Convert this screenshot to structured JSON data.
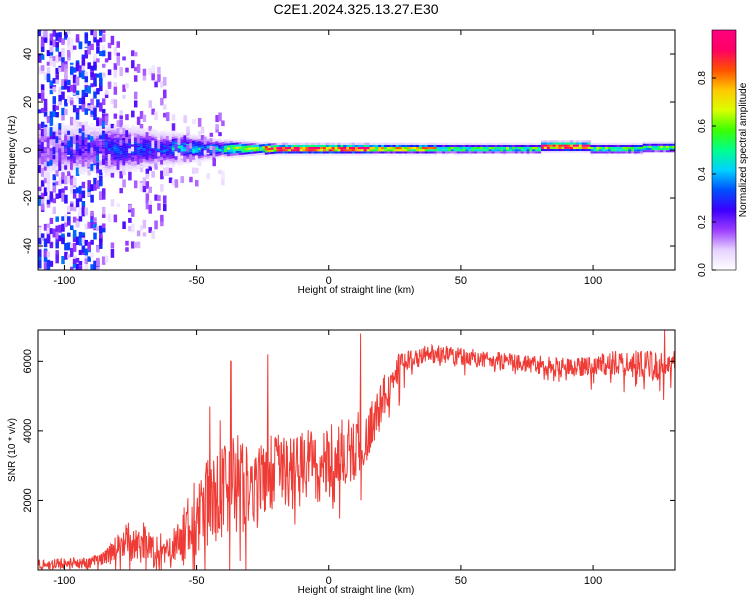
{
  "title": "C2E1.2024.325.13.27.E30",
  "charts": [
    {
      "type": "heatmap",
      "xlabel": "Height of straight line (km)",
      "ylabel": "Frequency (Hz)",
      "xlim": [
        -110,
        131
      ],
      "ylim": [
        -50,
        50
      ],
      "x_ticks": [
        -100,
        -50,
        0,
        50,
        100
      ],
      "y_ticks": [
        -40,
        -20,
        0,
        20,
        40
      ],
      "colorbar": {
        "label": "Normalized spectral amplitude",
        "range": [
          0,
          1
        ],
        "ticks": [
          "0.0",
          "0.2",
          "0.4",
          "0.6",
          "0.8"
        ],
        "colors": [
          "#ffffff",
          "#e6d2ff",
          "#9b3cff",
          "#3c00ff",
          "#0050ff",
          "#00d2ff",
          "#00ff8c",
          "#3cff00",
          "#dcff00",
          "#ffc800",
          "#ff5000",
          "#ff0064",
          "#ff0080"
        ]
      }
    },
    {
      "type": "line",
      "xlabel": "Height of straight line (km)",
      "ylabel": "SNR (10 * v/v)",
      "xlim": [
        -110,
        131
      ],
      "ylim": [
        0,
        6900
      ],
      "x_ticks": [
        -100,
        -50,
        0,
        50,
        100
      ],
      "y_ticks": [
        2000,
        4000,
        6000
      ],
      "color": "#ef3b35",
      "envelope": [
        {
          "x": -110,
          "y": 150
        },
        {
          "x": -100,
          "y": 180
        },
        {
          "x": -90,
          "y": 220
        },
        {
          "x": -85,
          "y": 350
        },
        {
          "x": -78,
          "y": 800
        },
        {
          "x": -72,
          "y": 900
        },
        {
          "x": -66,
          "y": 600
        },
        {
          "x": -60,
          "y": 550
        },
        {
          "x": -55,
          "y": 900
        },
        {
          "x": -50,
          "y": 1500
        },
        {
          "x": -45,
          "y": 2000
        },
        {
          "x": -40,
          "y": 2300
        },
        {
          "x": -35,
          "y": 2600
        },
        {
          "x": -30,
          "y": 2200
        },
        {
          "x": -25,
          "y": 2500
        },
        {
          "x": -20,
          "y": 2800
        },
        {
          "x": -15,
          "y": 2800
        },
        {
          "x": -10,
          "y": 2900
        },
        {
          "x": -5,
          "y": 3000
        },
        {
          "x": 0,
          "y": 3100
        },
        {
          "x": 5,
          "y": 3300
        },
        {
          "x": 10,
          "y": 3600
        },
        {
          "x": 15,
          "y": 4000
        },
        {
          "x": 20,
          "y": 4800
        },
        {
          "x": 25,
          "y": 5700
        },
        {
          "x": 30,
          "y": 6000
        },
        {
          "x": 35,
          "y": 6150
        },
        {
          "x": 40,
          "y": 6200
        },
        {
          "x": 50,
          "y": 6150
        },
        {
          "x": 60,
          "y": 6050
        },
        {
          "x": 70,
          "y": 5950
        },
        {
          "x": 80,
          "y": 5900
        },
        {
          "x": 90,
          "y": 5800
        },
        {
          "x": 100,
          "y": 5850
        },
        {
          "x": 110,
          "y": 6000
        },
        {
          "x": 120,
          "y": 5900
        },
        {
          "x": 125,
          "y": 5800
        },
        {
          "x": 131,
          "y": 6000
        }
      ],
      "noise_envelope": [
        {
          "x": -110,
          "y": 150
        },
        {
          "x": -85,
          "y": 200
        },
        {
          "x": -75,
          "y": 600
        },
        {
          "x": -60,
          "y": 500
        },
        {
          "x": -50,
          "y": 1200
        },
        {
          "x": -40,
          "y": 1400
        },
        {
          "x": -25,
          "y": 1200
        },
        {
          "x": -10,
          "y": 1100
        },
        {
          "x": 0,
          "y": 1100
        },
        {
          "x": 10,
          "y": 1000
        },
        {
          "x": 20,
          "y": 700
        },
        {
          "x": 30,
          "y": 300
        },
        {
          "x": 50,
          "y": 250
        },
        {
          "x": 100,
          "y": 300
        },
        {
          "x": 120,
          "y": 450
        },
        {
          "x": 131,
          "y": 400
        }
      ],
      "spikes": [
        {
          "x": -37,
          "y": 6000
        },
        {
          "x": -23,
          "y": 6200
        },
        {
          "x": -45,
          "y": 4700
        },
        {
          "x": 12,
          "y": 6800
        },
        {
          "x": 127,
          "y": 6900
        },
        {
          "x": -41,
          "y": 4300
        }
      ]
    }
  ]
}
